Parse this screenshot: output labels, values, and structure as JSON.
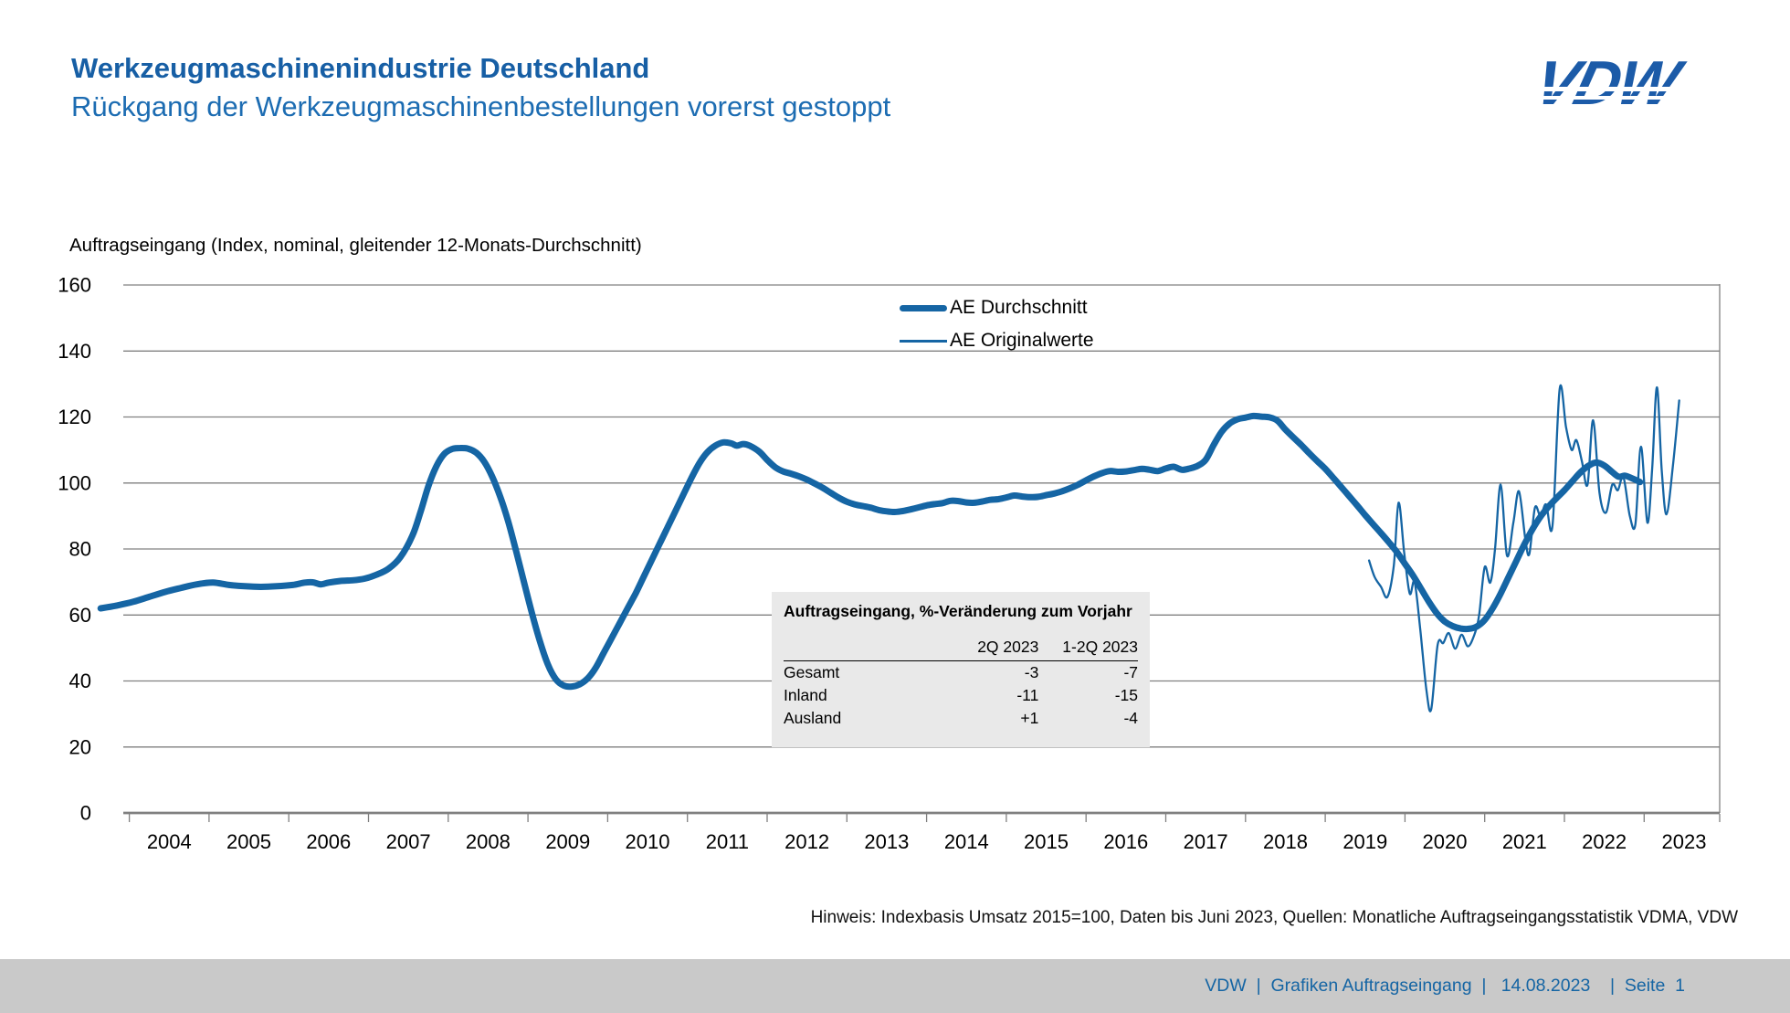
{
  "header": {
    "title": "Werkzeugmaschinenindustrie Deutschland",
    "subtitle": "Rückgang der Werkzeugmaschinenbestellungen vorerst gestoppt",
    "logo_text": "VDW"
  },
  "chart_data": {
    "type": "line",
    "title": "Auftragseingang (Index, nominal, gleitender 12-Monats-Durchschnitt)",
    "x_axis": {
      "labels": [
        "2004",
        "2005",
        "2006",
        "2007",
        "2008",
        "2009",
        "2010",
        "2011",
        "2012",
        "2013",
        "2014",
        "2015",
        "2016",
        "2017",
        "2018",
        "2019",
        "2020",
        "2021",
        "2022",
        "2023"
      ]
    },
    "y_axis": {
      "min": 0,
      "max": 160,
      "ticks": [
        0,
        20,
        40,
        60,
        80,
        100,
        120,
        140,
        160
      ]
    },
    "grid": true,
    "legend_position": "top-center",
    "colors": {
      "line": "#1565A4",
      "grid": "#808080",
      "axis": "#808080"
    },
    "legend": [
      {
        "name": "AE Durchschnitt",
        "style": "thick"
      },
      {
        "name": "AE Originalwerte",
        "style": "thin"
      }
    ],
    "series": [
      {
        "name": "AE Durchschnitt",
        "points": [
          [
            2003.64,
            62
          ],
          [
            2003.85,
            62.9
          ],
          [
            2004.05,
            64
          ],
          [
            2004.25,
            65.5
          ],
          [
            2004.45,
            67
          ],
          [
            2004.65,
            68.2
          ],
          [
            2004.85,
            69.3
          ],
          [
            2005.05,
            69.8
          ],
          [
            2005.25,
            69.1
          ],
          [
            2005.45,
            68.7
          ],
          [
            2005.65,
            68.5
          ],
          [
            2005.85,
            68.7
          ],
          [
            2006.05,
            69.1
          ],
          [
            2006.2,
            69.8
          ],
          [
            2006.3,
            69.9
          ],
          [
            2006.4,
            69.3
          ],
          [
            2006.5,
            69.8
          ],
          [
            2006.65,
            70.3
          ],
          [
            2006.8,
            70.5
          ],
          [
            2006.95,
            71
          ],
          [
            2007.1,
            72.2
          ],
          [
            2007.25,
            74
          ],
          [
            2007.4,
            77.5
          ],
          [
            2007.55,
            84
          ],
          [
            2007.65,
            91
          ],
          [
            2007.75,
            99
          ],
          [
            2007.85,
            105
          ],
          [
            2007.95,
            108.8
          ],
          [
            2008.05,
            110.3
          ],
          [
            2008.15,
            110.6
          ],
          [
            2008.25,
            110.4
          ],
          [
            2008.35,
            109.2
          ],
          [
            2008.45,
            106.5
          ],
          [
            2008.55,
            102
          ],
          [
            2008.65,
            96
          ],
          [
            2008.75,
            88.5
          ],
          [
            2008.85,
            79.5
          ],
          [
            2008.95,
            70
          ],
          [
            2009.05,
            60.5
          ],
          [
            2009.15,
            52
          ],
          [
            2009.25,
            45
          ],
          [
            2009.35,
            40.5
          ],
          [
            2009.45,
            38.6
          ],
          [
            2009.55,
            38.3
          ],
          [
            2009.65,
            39
          ],
          [
            2009.75,
            40.8
          ],
          [
            2009.85,
            44
          ],
          [
            2009.95,
            48.5
          ],
          [
            2010.05,
            53
          ],
          [
            2010.15,
            57.5
          ],
          [
            2010.25,
            62
          ],
          [
            2010.35,
            66.5
          ],
          [
            2010.45,
            71.5
          ],
          [
            2010.55,
            76.5
          ],
          [
            2010.65,
            81.5
          ],
          [
            2010.75,
            86.5
          ],
          [
            2010.85,
            91.5
          ],
          [
            2010.95,
            96.5
          ],
          [
            2011.05,
            101.5
          ],
          [
            2011.15,
            106
          ],
          [
            2011.25,
            109.3
          ],
          [
            2011.35,
            111.3
          ],
          [
            2011.45,
            112.3
          ],
          [
            2011.55,
            112
          ],
          [
            2011.62,
            111.3
          ],
          [
            2011.7,
            111.8
          ],
          [
            2011.78,
            111.3
          ],
          [
            2011.9,
            109.5
          ],
          [
            2012,
            107
          ],
          [
            2012.1,
            104.8
          ],
          [
            2012.2,
            103.5
          ],
          [
            2012.3,
            102.8
          ],
          [
            2012.4,
            102
          ],
          [
            2012.5,
            101
          ],
          [
            2012.6,
            99.8
          ],
          [
            2012.7,
            98.5
          ],
          [
            2012.8,
            97
          ],
          [
            2012.9,
            95.5
          ],
          [
            2013,
            94.3
          ],
          [
            2013.1,
            93.5
          ],
          [
            2013.2,
            93
          ],
          [
            2013.3,
            92.5
          ],
          [
            2013.4,
            91.8
          ],
          [
            2013.5,
            91.4
          ],
          [
            2013.6,
            91.2
          ],
          [
            2013.7,
            91.5
          ],
          [
            2013.8,
            92
          ],
          [
            2013.9,
            92.6
          ],
          [
            2014,
            93.2
          ],
          [
            2014.1,
            93.6
          ],
          [
            2014.2,
            93.9
          ],
          [
            2014.3,
            94.6
          ],
          [
            2014.4,
            94.5
          ],
          [
            2014.5,
            94.1
          ],
          [
            2014.6,
            94
          ],
          [
            2014.7,
            94.4
          ],
          [
            2014.8,
            94.9
          ],
          [
            2014.9,
            95.1
          ],
          [
            2015,
            95.6
          ],
          [
            2015.1,
            96.2
          ],
          [
            2015.2,
            95.9
          ],
          [
            2015.3,
            95.7
          ],
          [
            2015.4,
            95.8
          ],
          [
            2015.5,
            96.3
          ],
          [
            2015.6,
            96.8
          ],
          [
            2015.7,
            97.5
          ],
          [
            2015.8,
            98.4
          ],
          [
            2015.9,
            99.5
          ],
          [
            2016,
            100.8
          ],
          [
            2016.1,
            102
          ],
          [
            2016.2,
            103
          ],
          [
            2016.3,
            103.6
          ],
          [
            2016.4,
            103.4
          ],
          [
            2016.5,
            103.5
          ],
          [
            2016.6,
            103.9
          ],
          [
            2016.7,
            104.3
          ],
          [
            2016.8,
            104
          ],
          [
            2016.9,
            103.6
          ],
          [
            2017,
            104.4
          ],
          [
            2017.1,
            104.9
          ],
          [
            2017.2,
            104
          ],
          [
            2017.3,
            104.4
          ],
          [
            2017.4,
            105.2
          ],
          [
            2017.5,
            107
          ],
          [
            2017.6,
            111.5
          ],
          [
            2017.7,
            115.5
          ],
          [
            2017.8,
            118
          ],
          [
            2017.9,
            119.3
          ],
          [
            2018,
            119.8
          ],
          [
            2018.1,
            120.3
          ],
          [
            2018.2,
            120.1
          ],
          [
            2018.3,
            119.9
          ],
          [
            2018.4,
            118.9
          ],
          [
            2018.5,
            116.2
          ],
          [
            2018.6,
            113.8
          ],
          [
            2018.7,
            111.5
          ],
          [
            2018.8,
            109
          ],
          [
            2018.9,
            106.6
          ],
          [
            2019,
            104.3
          ],
          [
            2019.1,
            101.6
          ],
          [
            2019.2,
            98.8
          ],
          [
            2019.3,
            96
          ],
          [
            2019.4,
            93.2
          ],
          [
            2019.5,
            90.3
          ],
          [
            2019.6,
            87.5
          ],
          [
            2019.7,
            84.8
          ],
          [
            2019.8,
            82
          ],
          [
            2019.9,
            79
          ],
          [
            2020,
            75.5
          ],
          [
            2020.1,
            72
          ],
          [
            2020.2,
            68
          ],
          [
            2020.3,
            64
          ],
          [
            2020.4,
            60.5
          ],
          [
            2020.5,
            58
          ],
          [
            2020.6,
            56.6
          ],
          [
            2020.7,
            55.9
          ],
          [
            2020.8,
            55.8
          ],
          [
            2020.9,
            56.5
          ],
          [
            2021,
            58.5
          ],
          [
            2021.1,
            62
          ],
          [
            2021.2,
            66.5
          ],
          [
            2021.3,
            71.5
          ],
          [
            2021.4,
            76.5
          ],
          [
            2021.5,
            81.5
          ],
          [
            2021.6,
            86
          ],
          [
            2021.7,
            89.8
          ],
          [
            2021.8,
            92.8
          ],
          [
            2021.9,
            95.4
          ],
          [
            2022,
            97.8
          ],
          [
            2022.1,
            100.5
          ],
          [
            2022.2,
            103.2
          ],
          [
            2022.3,
            105.2
          ],
          [
            2022.4,
            106.2
          ],
          [
            2022.5,
            105.3
          ],
          [
            2022.6,
            103.3
          ],
          [
            2022.68,
            101.9
          ],
          [
            2022.76,
            102.2
          ],
          [
            2022.85,
            101.4
          ],
          [
            2022.95,
            100.3
          ]
        ]
      },
      {
        "name": "AE Originalwerte",
        "points": [
          [
            2019.55,
            76.5
          ],
          [
            2019.62,
            71.5
          ],
          [
            2019.7,
            68.5
          ],
          [
            2019.78,
            65.5
          ],
          [
            2019.86,
            75
          ],
          [
            2019.92,
            94
          ],
          [
            2019.99,
            79
          ],
          [
            2020.06,
            66.5
          ],
          [
            2020.12,
            70
          ],
          [
            2020.19,
            56
          ],
          [
            2020.27,
            37
          ],
          [
            2020.33,
            31.5
          ],
          [
            2020.41,
            51
          ],
          [
            2020.48,
            51.5
          ],
          [
            2020.55,
            54.5
          ],
          [
            2020.63,
            49.8
          ],
          [
            2020.71,
            54
          ],
          [
            2020.79,
            50.5
          ],
          [
            2020.87,
            54
          ],
          [
            2020.93,
            60
          ],
          [
            2021,
            74.5
          ],
          [
            2021.07,
            69.8
          ],
          [
            2021.13,
            80
          ],
          [
            2021.2,
            99.5
          ],
          [
            2021.28,
            78
          ],
          [
            2021.36,
            88
          ],
          [
            2021.43,
            97.5
          ],
          [
            2021.51,
            83
          ],
          [
            2021.56,
            78.5
          ],
          [
            2021.63,
            92.5
          ],
          [
            2021.7,
            90
          ],
          [
            2021.77,
            93.5
          ],
          [
            2021.85,
            87
          ],
          [
            2021.94,
            128.5
          ],
          [
            2022.02,
            117
          ],
          [
            2022.09,
            110
          ],
          [
            2022.15,
            113
          ],
          [
            2022.22,
            106.5
          ],
          [
            2022.29,
            99.5
          ],
          [
            2022.36,
            119
          ],
          [
            2022.44,
            97
          ],
          [
            2022.52,
            91
          ],
          [
            2022.6,
            99.5
          ],
          [
            2022.67,
            97.8
          ],
          [
            2022.74,
            101.8
          ],
          [
            2022.82,
            90
          ],
          [
            2022.89,
            87.5
          ],
          [
            2022.96,
            111
          ],
          [
            2023.04,
            88
          ],
          [
            2023.1,
            104
          ],
          [
            2023.16,
            129
          ],
          [
            2023.22,
            104
          ],
          [
            2023.28,
            90.5
          ],
          [
            2023.36,
            105
          ],
          [
            2023.44,
            125
          ]
        ]
      }
    ]
  },
  "inset_table": {
    "title": "Auftragseingang, %-Veränderung zum Vorjahr",
    "col_headers": [
      "2Q 2023",
      "1-2Q 2023"
    ],
    "rows": [
      {
        "label": "Gesamt",
        "values": [
          "-3",
          "-7"
        ]
      },
      {
        "label": "Inland",
        "values": [
          "-11",
          "-15"
        ]
      },
      {
        "label": "Ausland",
        "values": [
          "+1",
          "-4"
        ]
      }
    ]
  },
  "footnote": "Hinweis: Indexbasis Umsatz 2015=100, Daten bis Juni 2023, Quellen: Monatliche Auftragseingangsstatistik VDMA, VDW",
  "footer": {
    "text": "VDW  |  Grafiken Auftragseingang  |   14.08.2023    |  Seite  1"
  }
}
